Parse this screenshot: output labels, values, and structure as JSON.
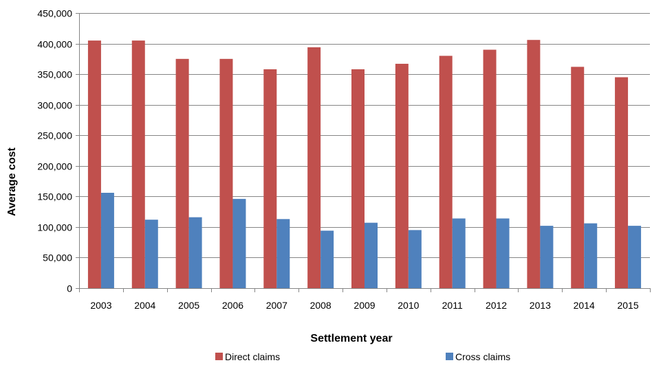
{
  "chart_data": {
    "type": "bar",
    "xlabel": "Settlement year",
    "ylabel": "Average cost",
    "ylim": [
      0,
      450000
    ],
    "yticks": [
      0,
      50000,
      100000,
      150000,
      200000,
      250000,
      300000,
      350000,
      400000,
      450000
    ],
    "ytick_labels": [
      "0",
      "50,000",
      "100,000",
      "150,000",
      "200,000",
      "250,000",
      "300,000",
      "350,000",
      "400,000",
      "450,000"
    ],
    "categories": [
      "2003",
      "2004",
      "2005",
      "2006",
      "2007",
      "2008",
      "2009",
      "2010",
      "2011",
      "2012",
      "2013",
      "2014",
      "2015"
    ],
    "series": [
      {
        "name": "Direct claims",
        "color": "#c0504d",
        "values": [
          405000,
          405000,
          375000,
          375000,
          358000,
          394000,
          358000,
          367000,
          380000,
          390000,
          406000,
          362000,
          345000
        ]
      },
      {
        "name": "Cross claims",
        "color": "#4f81bd",
        "values": [
          156000,
          112000,
          116000,
          146000,
          113000,
          94000,
          107000,
          95000,
          114000,
          114000,
          102000,
          106000,
          102000
        ]
      }
    ],
    "grid": true,
    "legend": "bottom"
  }
}
